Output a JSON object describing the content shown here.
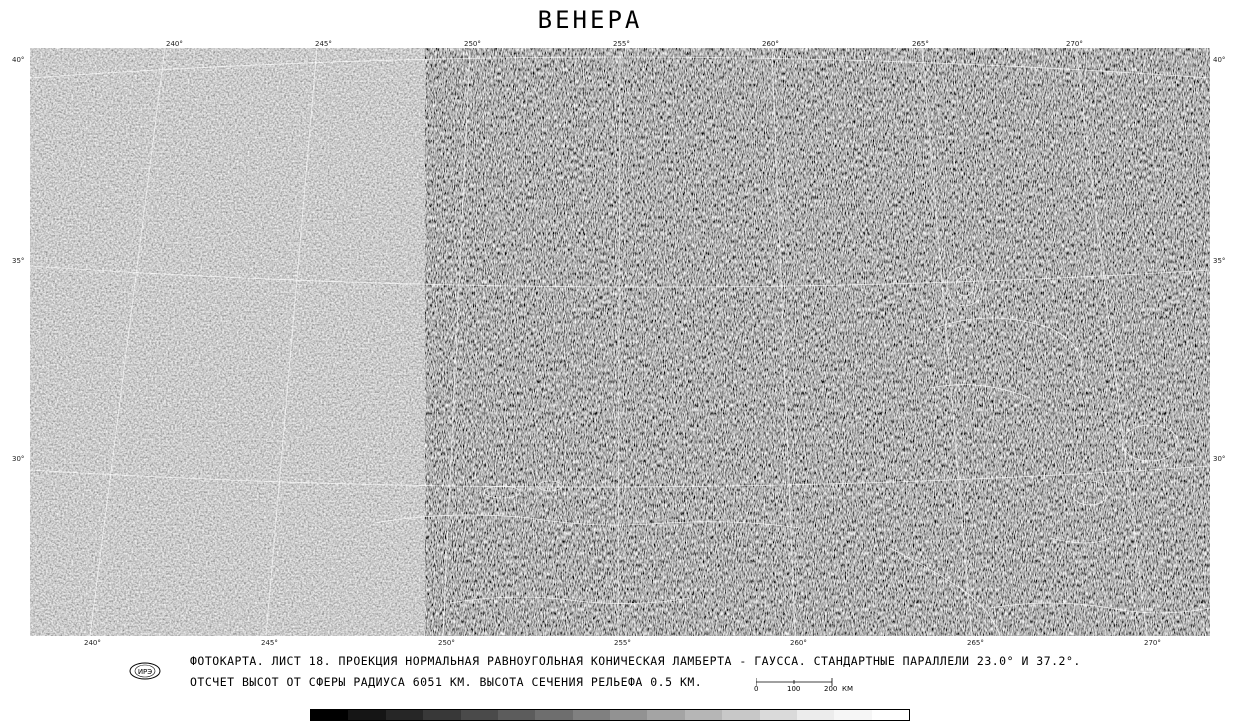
{
  "title": "ВЕНЕРА",
  "longitudes_top": [
    "240°",
    "245°",
    "250°",
    "255°",
    "260°",
    "265°",
    "270°"
  ],
  "longitudes_bottom": [
    "240°",
    "245°",
    "250°",
    "255°",
    "260°",
    "265°",
    "270°"
  ],
  "latitudes_left": [
    "40°",
    "35°",
    "30°"
  ],
  "latitudes_right": [
    "40°",
    "35°",
    "30°"
  ],
  "caption": {
    "line1": "ФОТОКАРТА. ЛИСТ 18. ПРОЕКЦИЯ НОРМАЛЬНАЯ РАВНОУГОЛЬНАЯ КОНИЧЕСКАЯ ЛАМБЕРТА - ГАУССА. СТАНДАРТНЫЕ ПАРАЛЛЕЛИ 23.0° И 37.2°.",
    "line2": "ОТСЧЕТ ВЫСОТ ОТ СФЕРЫ РАДИУСА 6051 КМ. ВЫСОТА СЕЧЕНИЯ РЕЛЬЕФА 0.5 КМ."
  },
  "logo_text": "ИРЭ",
  "scale": {
    "labels": [
      "0",
      "100",
      "200"
    ],
    "unit": "КМ"
  },
  "colorbar_colors": [
    "#000000",
    "#151515",
    "#262626",
    "#383838",
    "#4a4a4a",
    "#5c5c5c",
    "#6e6e6e",
    "#808080",
    "#929292",
    "#a4a4a4",
    "#b6b6b6",
    "#c8c8c8",
    "#dadada",
    "#ececec",
    "#f6f6f6",
    "#ffffff"
  ]
}
